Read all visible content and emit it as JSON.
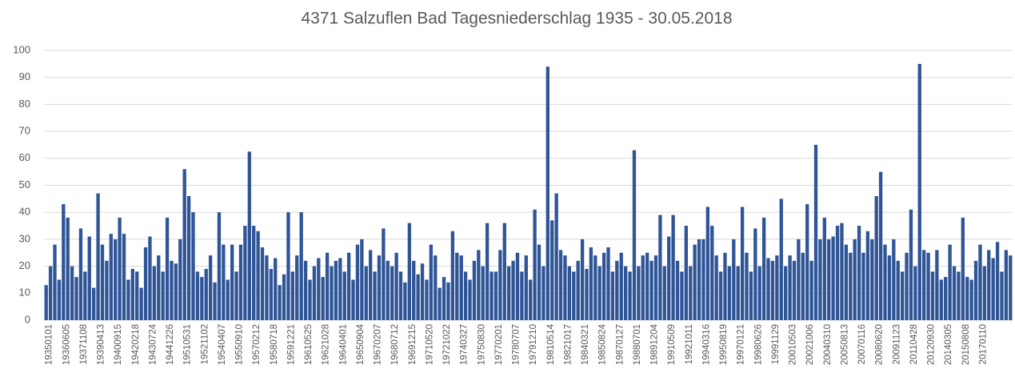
{
  "chart_data": {
    "type": "bar",
    "title": "4371 Salzuflen Bad Tagesniederschlag 1935 - 30.05.2018",
    "color": "#2f5597",
    "grid": true,
    "ylim": [
      0,
      100
    ],
    "yticks": [
      0,
      10,
      20,
      30,
      40,
      50,
      60,
      70,
      80,
      90,
      100
    ],
    "categories": [
      "19350101",
      null,
      null,
      null,
      "19360605",
      null,
      null,
      null,
      "19371108",
      null,
      null,
      null,
      "19390413",
      null,
      null,
      null,
      "19400915",
      null,
      null,
      null,
      "19420218",
      null,
      null,
      null,
      "19430724",
      null,
      null,
      null,
      "19441226",
      null,
      null,
      null,
      "19510531",
      null,
      null,
      null,
      "19521102",
      null,
      null,
      null,
      "19540407",
      null,
      null,
      null,
      "19550910",
      null,
      null,
      null,
      "19570212",
      null,
      null,
      null,
      "19580718",
      null,
      null,
      null,
      "19591221",
      null,
      null,
      null,
      "19610525",
      null,
      null,
      null,
      "19621028",
      null,
      null,
      null,
      "19640401",
      null,
      null,
      null,
      "19650904",
      null,
      null,
      null,
      "19670207",
      null,
      null,
      null,
      "19680712",
      null,
      null,
      null,
      "19691215",
      null,
      null,
      null,
      "19710520",
      null,
      null,
      null,
      "19721022",
      null,
      null,
      null,
      "19740327",
      null,
      null,
      null,
      "19750830",
      null,
      null,
      null,
      "19770201",
      null,
      null,
      null,
      "19780707",
      null,
      null,
      null,
      "19791210",
      null,
      null,
      null,
      "19810514",
      null,
      null,
      null,
      "19821017",
      null,
      null,
      null,
      "19840321",
      null,
      null,
      null,
      "19850824",
      null,
      null,
      null,
      "19870127",
      null,
      null,
      null,
      "19880701",
      null,
      null,
      null,
      "19891204",
      null,
      null,
      null,
      "19910509",
      null,
      null,
      null,
      "19921011",
      null,
      null,
      null,
      "19940316",
      null,
      null,
      null,
      "19950819",
      null,
      null,
      null,
      "19970121",
      null,
      null,
      null,
      "19980626",
      null,
      null,
      null,
      "19991129",
      null,
      null,
      null,
      "20010503",
      null,
      null,
      null,
      "20021006",
      null,
      null,
      null,
      "20040310",
      null,
      null,
      null,
      "20050813",
      null,
      null,
      null,
      "20070116",
      null,
      null,
      null,
      "20080620",
      null,
      null,
      null,
      "20091123",
      null,
      null,
      null,
      "20110428",
      null,
      null,
      null,
      "20120930",
      null,
      null,
      null,
      "20140305",
      null,
      null,
      null,
      "20150808",
      null,
      null,
      null,
      "20170110",
      null,
      null,
      null,
      null,
      null,
      null,
      null
    ],
    "values": [
      13,
      20,
      28,
      15,
      43,
      38,
      20,
      16,
      34,
      18,
      31,
      12,
      47,
      28,
      22,
      32,
      30,
      38,
      32,
      15,
      19,
      18,
      12,
      27,
      31,
      20,
      24,
      18,
      38,
      22,
      21,
      30,
      56,
      46,
      40,
      18,
      16,
      19,
      24,
      14,
      40,
      28,
      15,
      28,
      18,
      28,
      35,
      62.5,
      35,
      33,
      27,
      24,
      19,
      23,
      13,
      17,
      40,
      18,
      24,
      40,
      22,
      15,
      20,
      23,
      16,
      25,
      20,
      22,
      23,
      18,
      25,
      15,
      28,
      30,
      20,
      26,
      18,
      24,
      34,
      22,
      20,
      25,
      18,
      14,
      36,
      22,
      17,
      21,
      15,
      28,
      24,
      12,
      16,
      14,
      33,
      25,
      24,
      18,
      15,
      22,
      26,
      20,
      36,
      18,
      18,
      26,
      36,
      20,
      22,
      25,
      18,
      24,
      15,
      41,
      28,
      20,
      94,
      37,
      47,
      26,
      24,
      20,
      18,
      22,
      30,
      19,
      27,
      24,
      20,
      25,
      27,
      18,
      22,
      25,
      20,
      18,
      63,
      20,
      24,
      25,
      22,
      24,
      39,
      20,
      31,
      39,
      22,
      18,
      35,
      20,
      28,
      30,
      30,
      42,
      35,
      24,
      18,
      25,
      20,
      30,
      20,
      42,
      25,
      18,
      34,
      20,
      38,
      23,
      22,
      24,
      45,
      20,
      24,
      22,
      30,
      25,
      43,
      22,
      65,
      30,
      38,
      30,
      31,
      35,
      36,
      28,
      25,
      30,
      35,
      25,
      33,
      30,
      46,
      55,
      28,
      24,
      30,
      22,
      18,
      25,
      41,
      20,
      95,
      26,
      25,
      18,
      26,
      15,
      16,
      28,
      20,
      18,
      38,
      16,
      15,
      22,
      28,
      20,
      26,
      23,
      29,
      18,
      26,
      24
    ]
  }
}
